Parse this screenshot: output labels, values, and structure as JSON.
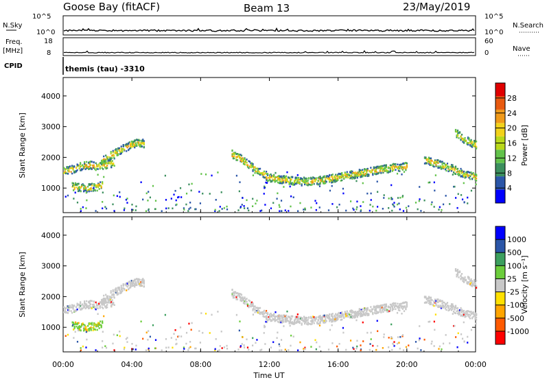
{
  "header": {
    "station": "Goose Bay (fitACF)",
    "beam": "Beam 13",
    "date": "23/May/2019"
  },
  "strips": {
    "nsky": {
      "label": "N.Sky",
      "ticks_left": [
        "10^5",
        "10^0"
      ],
      "ticks_right": [
        "10^5",
        "10^0"
      ],
      "right_label": "N.Search",
      "level": 0.55
    },
    "freq": {
      "label": "Freq.",
      "unit": "[MHz]",
      "ticks_left": [
        "18",
        "8"
      ],
      "ticks_right": [
        "60",
        "0"
      ],
      "right_label": "Nave",
      "level": 0.55
    },
    "cpid": {
      "label": "CPID",
      "text": "themis (tau) -3310"
    }
  },
  "colors": {
    "power": [
      "#0000ff",
      "#2b56a8",
      "#3c8f5e",
      "#62c24a",
      "#b9d81a",
      "#f2d21a",
      "#f09a1a",
      "#e85a10",
      "#e00000"
    ],
    "velocity": [
      "#ff0000",
      "#ff5a00",
      "#ffa500",
      "#ffe000",
      "#c8c8c8",
      "#6ccd3c",
      "#3c9f5e",
      "#2b56a8",
      "#0000ff"
    ]
  },
  "chart_data": [
    {
      "type": "heatmap",
      "name": "power",
      "ylabel": "Slant Range [km]",
      "ylim": [
        200,
        4600
      ],
      "yticks": [
        1000,
        2000,
        3000,
        4000
      ],
      "xlim": [
        0,
        24
      ],
      "colorbar": {
        "label": "Power [dB]",
        "range": [
          0,
          32
        ],
        "ticks": [
          "4",
          "8",
          "12",
          "16",
          "20",
          "24",
          "28"
        ]
      },
      "echo_bands": [
        {
          "t": [
            0.0,
            0.5,
            1.0,
            1.5,
            2.0,
            2.5,
            3.0
          ],
          "r": [
            1550,
            1600,
            1700,
            1750,
            1700,
            1750,
            1850
          ]
        },
        {
          "t": [
            0.5,
            1.0,
            1.5,
            2.0,
            2.3
          ],
          "r": [
            1050,
            1000,
            1000,
            1050,
            1100
          ]
        },
        {
          "t": [
            2.2,
            2.7,
            3.2,
            3.7,
            4.2,
            4.7
          ],
          "r": [
            1900,
            2050,
            2200,
            2350,
            2450,
            2450
          ]
        },
        {
          "t": [
            9.8,
            10.3,
            10.8,
            11.3,
            11.8
          ],
          "r": [
            2100,
            1950,
            1750,
            1550,
            1400
          ]
        },
        {
          "t": [
            11.8,
            13.0,
            14.0,
            15.0,
            16.0,
            17.0,
            18.0,
            19.0,
            20.0
          ],
          "r": [
            1350,
            1250,
            1200,
            1250,
            1350,
            1450,
            1550,
            1650,
            1700
          ]
        },
        {
          "t": [
            21.0,
            21.7,
            22.5,
            23.3,
            24.0
          ],
          "r": [
            1900,
            1800,
            1650,
            1450,
            1350
          ]
        },
        {
          "t": [
            22.8,
            23.4,
            24.0
          ],
          "r": [
            2800,
            2550,
            2400
          ]
        }
      ]
    },
    {
      "type": "heatmap",
      "name": "velocity",
      "ylabel": "Slant Range [km]",
      "xlabel": "Time UT",
      "ylim": [
        200,
        4600
      ],
      "yticks": [
        1000,
        2000,
        3000,
        4000
      ],
      "xlim": [
        0,
        24
      ],
      "xticks": [
        "00:00",
        "04:00",
        "08:00",
        "12:00",
        "16:00",
        "20:00",
        "00:00"
      ],
      "colorbar": {
        "label": "Velocity [m s⁻¹]",
        "ticks": [
          "-1000",
          "-500",
          "-100",
          "-25",
          "25",
          "100",
          "500",
          "1000"
        ]
      }
    }
  ]
}
